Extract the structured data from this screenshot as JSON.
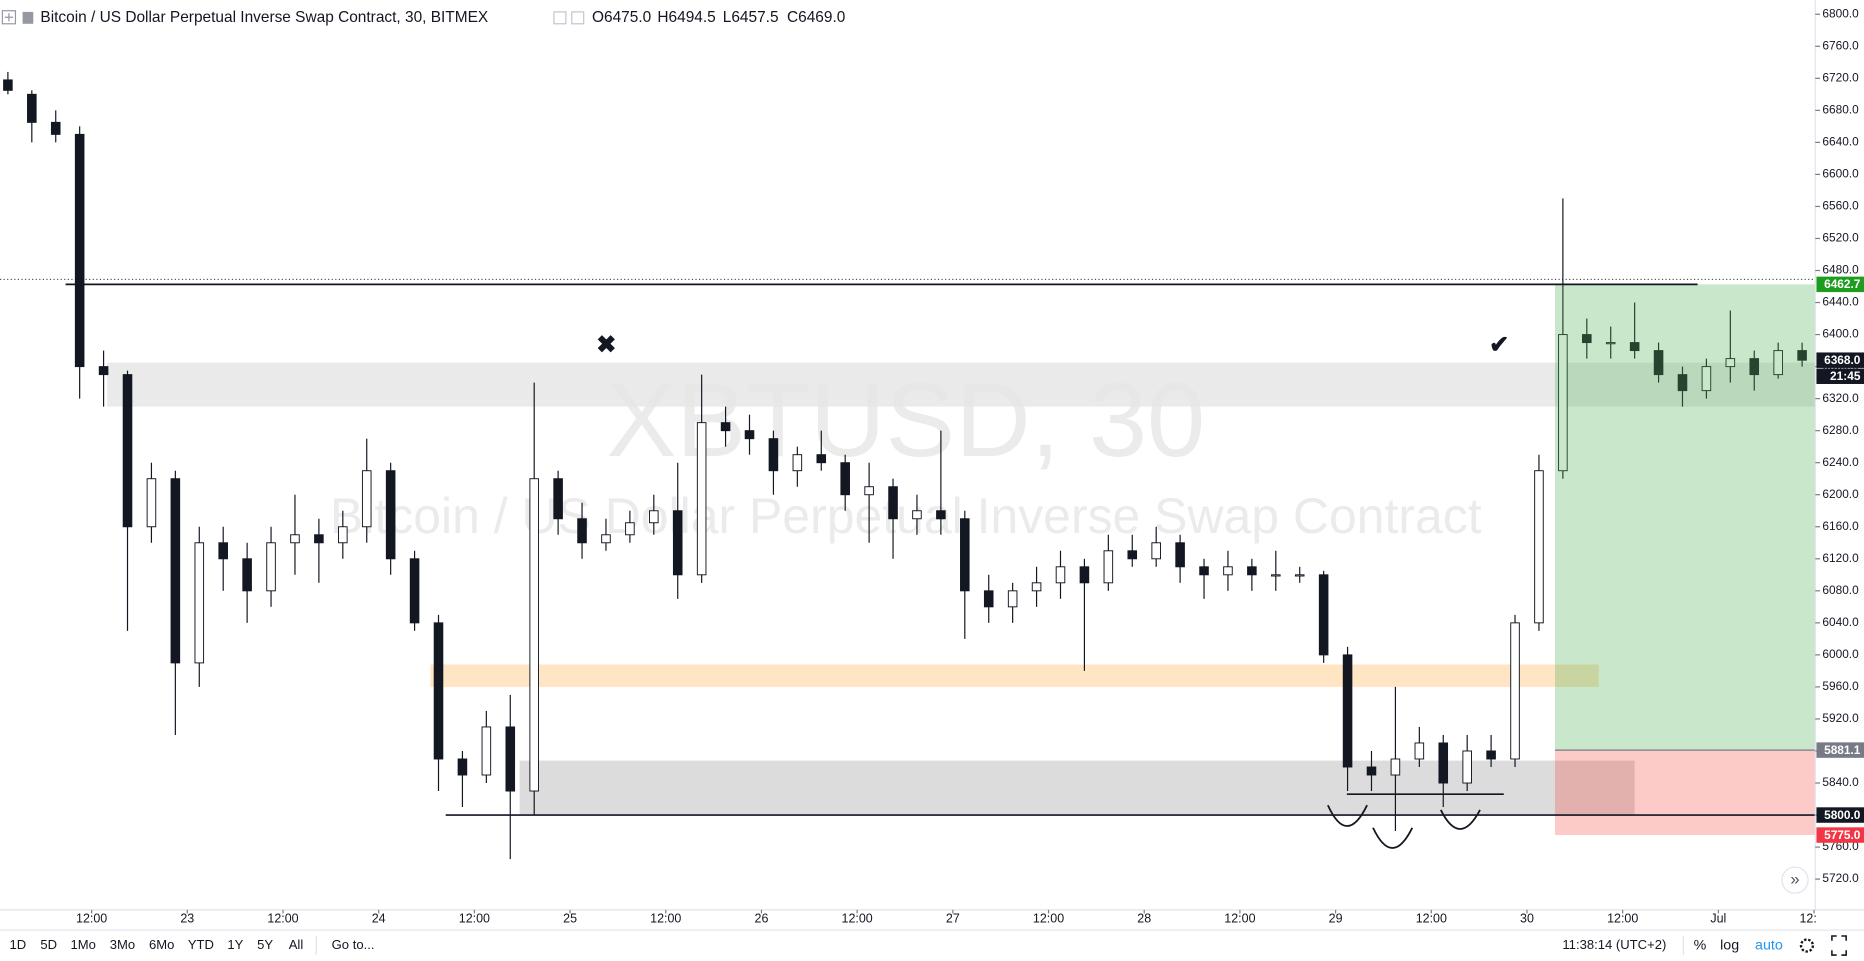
{
  "header": {
    "title": "Bitcoin / US Dollar Perpetual Inverse Swap Contract, 30, BITMEX",
    "ohlc": [
      "O6475.0",
      "H6494.5",
      "L6457.5",
      "C6469.0"
    ]
  },
  "watermark": {
    "symbol": "XBTUSD, 30",
    "name": "Bitcoin / US Dollar Perpetual Inverse Swap Contract"
  },
  "chart_data": {
    "type": "candlestick",
    "open": [
      6718,
      6700,
      6665,
      6650,
      6360,
      6350,
      6160,
      6220,
      5990,
      6140,
      6120,
      6080,
      6140,
      6150,
      6140,
      6160,
      6230,
      6120,
      6040,
      5870,
      5850,
      5910,
      5830,
      6220,
      6170,
      6140,
      6150,
      6165,
      6180,
      6100,
      6290,
      6280,
      6270,
      6230,
      6250,
      6240,
      6200,
      6210,
      6170,
      6180,
      6170,
      6080,
      6060,
      6080,
      6090,
      6110,
      6090,
      6130,
      6120,
      6140,
      6110,
      6100,
      6110,
      6100,
      6100,
      6100,
      6000,
      5860,
      5850,
      5870,
      5890,
      5840,
      5880,
      5870,
      6040,
      6230,
      6400,
      6390,
      6390,
      6380,
      6350,
      6330,
      6360,
      6370,
      6350,
      6380
    ],
    "high": [
      6728,
      6705,
      6680,
      6660,
      6380,
      6355,
      6240,
      6230,
      6160,
      6160,
      6140,
      6160,
      6200,
      6170,
      6180,
      6270,
      6240,
      6130,
      6050,
      5880,
      5930,
      5950,
      6340,
      6230,
      6190,
      6170,
      6180,
      6200,
      6240,
      6350,
      6310,
      6300,
      6280,
      6260,
      6280,
      6250,
      6240,
      6220,
      6200,
      6280,
      6180,
      6100,
      6090,
      6110,
      6130,
      6120,
      6150,
      6150,
      6160,
      6150,
      6120,
      6130,
      6120,
      6130,
      6110,
      6105,
      6010,
      5880,
      5960,
      5910,
      5900,
      5900,
      5900,
      6050,
      6250,
      6570,
      6420,
      6410,
      6440,
      6390,
      6360,
      6370,
      6430,
      6380,
      6390,
      6390
    ],
    "low": [
      6700,
      6640,
      6640,
      6320,
      6310,
      6030,
      6140,
      5900,
      5960,
      6080,
      6040,
      6060,
      6100,
      6090,
      6120,
      6140,
      6100,
      6030,
      5830,
      5810,
      5840,
      5745,
      5800,
      6150,
      6120,
      6130,
      6140,
      6150,
      6070,
      6090,
      6260,
      6250,
      6200,
      6210,
      6230,
      6180,
      6140,
      6120,
      6150,
      6150,
      6020,
      6040,
      6040,
      6060,
      6070,
      5980,
      6080,
      6110,
      6110,
      6090,
      6070,
      6080,
      6080,
      6080,
      6090,
      5990,
      5830,
      5830,
      5780,
      5860,
      5810,
      5830,
      5860,
      5860,
      6030,
      6220,
      6370,
      6370,
      6370,
      6340,
      6310,
      6320,
      6340,
      6330,
      6345,
      6360
    ],
    "close": [
      6705,
      6665,
      6650,
      6360,
      6350,
      6160,
      6220,
      5990,
      6140,
      6120,
      6080,
      6140,
      6150,
      6140,
      6160,
      6230,
      6120,
      6040,
      5870,
      5850,
      5910,
      5830,
      6220,
      6170,
      6140,
      6150,
      6165,
      6180,
      6100,
      6290,
      6280,
      6270,
      6230,
      6250,
      6240,
      6200,
      6210,
      6170,
      6180,
      6170,
      6080,
      6060,
      6080,
      6090,
      6110,
      6090,
      6130,
      6120,
      6140,
      6110,
      6100,
      6110,
      6100,
      6100,
      6100,
      6000,
      5860,
      5850,
      5870,
      5890,
      5840,
      5880,
      5870,
      6040,
      6230,
      6400,
      6390,
      6390,
      6380,
      6350,
      6330,
      6360,
      6370,
      6350,
      6380,
      6368
    ],
    "up_color": "#ffffff",
    "down_color": "#131722",
    "outline_color": "#131722",
    "xlim": [
      0.17,
      76.05
    ],
    "xticks": [
      {
        "value": 4,
        "label": "12:00"
      },
      {
        "value": 8,
        "label": "23"
      },
      {
        "value": 12,
        "label": "12:00"
      },
      {
        "value": 16,
        "label": "24"
      },
      {
        "value": 20,
        "label": "12:00"
      },
      {
        "value": 24,
        "label": "25"
      },
      {
        "value": 28,
        "label": "12:00"
      },
      {
        "value": 32,
        "label": "26"
      },
      {
        "value": 36,
        "label": "12:00"
      },
      {
        "value": 40,
        "label": "27"
      },
      {
        "value": 44,
        "label": "12:00"
      },
      {
        "value": 48,
        "label": "28"
      },
      {
        "value": 52,
        "label": "12:00"
      },
      {
        "value": 56,
        "label": "29"
      },
      {
        "value": 60,
        "label": "12:00"
      },
      {
        "value": 64,
        "label": "30"
      },
      {
        "value": 68,
        "label": "12:00"
      },
      {
        "value": 72,
        "label": "Jul"
      },
      {
        "value": 76,
        "label": "12:"
      }
    ],
    "ylim": [
      5681.6,
      6817.8
    ],
    "yticks": [
      {
        "value": 5720,
        "label": "5720.0"
      },
      {
        "value": 5760,
        "label": "5760.0"
      },
      {
        "value": 5800,
        "label": "5800.0"
      },
      {
        "value": 5840,
        "label": "5840.0"
      },
      {
        "value": 5880,
        "label": "5880.0"
      },
      {
        "value": 5920,
        "label": "5920.0"
      },
      {
        "value": 5960,
        "label": "5960.0"
      },
      {
        "value": 6000,
        "label": "6000.0"
      },
      {
        "value": 6040,
        "label": "6040.0"
      },
      {
        "value": 6080,
        "label": "6080.0"
      },
      {
        "value": 6120,
        "label": "6120.0"
      },
      {
        "value": 6160,
        "label": "6160.0"
      },
      {
        "value": 6200,
        "label": "6200.0"
      },
      {
        "value": 6240,
        "label": "6240.0"
      },
      {
        "value": 6280,
        "label": "6280.0"
      },
      {
        "value": 6320,
        "label": "6320.0"
      },
      {
        "value": 6360,
        "label": "6360.0"
      },
      {
        "value": 6400,
        "label": "6400.0"
      },
      {
        "value": 6440,
        "label": "6440.0"
      },
      {
        "value": 6480,
        "label": "6480.0"
      },
      {
        "value": 6520,
        "label": "6520.0"
      },
      {
        "value": 6560,
        "label": "6560.0"
      },
      {
        "value": 6600,
        "label": "6600.0"
      },
      {
        "value": 6640,
        "label": "6640.0"
      },
      {
        "value": 6680,
        "label": "6680.0"
      },
      {
        "value": 6720,
        "label": "6720.0"
      },
      {
        "value": 6760,
        "label": "6760.0"
      },
      {
        "value": 6800,
        "label": "6800.0"
      }
    ],
    "grid": false,
    "log_scale": false,
    "zones": [
      {
        "low": 6310,
        "high": 6365,
        "from": 4.65,
        "to": 76.05,
        "color": "#e6e6e6"
      },
      {
        "low": 5960,
        "high": 5988,
        "from": 18.16,
        "to": 67.0,
        "color": "#ffe1b8"
      },
      {
        "low": 5800,
        "high": 5868,
        "from": 21.89,
        "to": 68.5,
        "color": "#d6d6d6"
      }
    ],
    "lines": [
      {
        "value": 6462.7,
        "from": 2.91,
        "to": 71.13,
        "color": "#131722"
      },
      {
        "value": 5800,
        "from": 18.8,
        "to": 76.05,
        "color": "#131722"
      },
      {
        "value": 5826,
        "from": 56.47,
        "to": 63.03,
        "color": "#131722"
      }
    ],
    "last_price_line": 6469,
    "position": {
      "from": 65.17,
      "to": 76.05,
      "entry": 5881.1,
      "target": 6462.7,
      "stop": 5775,
      "profit_color": "#4caf50",
      "loss_color": "#f44336"
    },
    "price_labels": [
      {
        "value": 6462.7,
        "label": "6462.7",
        "color": "#1e9c1e"
      },
      {
        "value": 6368,
        "label": "6368.0",
        "color": "#131722"
      },
      {
        "value": 5881.1,
        "label": "5881.1",
        "color": "#787b86"
      },
      {
        "value": 5800,
        "label": "5800.0",
        "color": "#131722"
      },
      {
        "value": 5775,
        "label": "5775.0",
        "color": "#f23645"
      }
    ],
    "countdown": "21:45"
  },
  "toolbar": {
    "ranges": [
      "1D",
      "5D",
      "1Mo",
      "3Mo",
      "6Mo",
      "YTD",
      "1Y",
      "5Y",
      "All"
    ],
    "goto": "Go to...",
    "time": "11:38:14 (UTC+2)",
    "options": [
      "%",
      "log",
      "auto"
    ]
  }
}
